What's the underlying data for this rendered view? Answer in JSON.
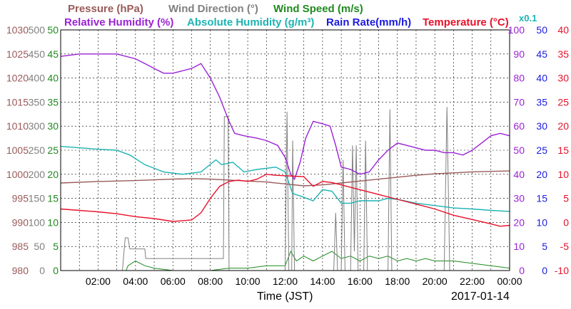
{
  "chart_data": {
    "type": "line",
    "xlabel": "Time (JST)",
    "date_label": "2017-01-14",
    "x_ticks": [
      "02:00",
      "04:00",
      "06:00",
      "08:00",
      "10:00",
      "12:00",
      "14:00",
      "16:00",
      "18:00",
      "20:00",
      "22:00",
      "00:00"
    ],
    "x_range_hours": [
      0,
      24
    ],
    "grid": true,
    "legend": [
      {
        "key": "pressure",
        "label": "Pressure (hPa)",
        "color": "#9a5a5a"
      },
      {
        "key": "wind_dir",
        "label": "Wind Direction (°)",
        "color": "#808080"
      },
      {
        "key": "wind_speed",
        "label": "Wind Speed (m/s)",
        "color": "#1f8a1f"
      },
      {
        "key": "rh",
        "label": "Relative Humidity (%)",
        "color": "#9b22d6"
      },
      {
        "key": "ah",
        "label": "Absolute Humidity (g/m³)",
        "color": "#1fb3b3"
      },
      {
        "key": "ah_scale",
        "label": "x0.1",
        "color": "#1fb3b3"
      },
      {
        "key": "rain",
        "label": "Rain Rate(mm/h)",
        "color": "#1b1be0"
      },
      {
        "key": "temp",
        "label": "Temperature (°C)",
        "color": "#e8102a"
      }
    ],
    "axes": {
      "pressure": {
        "side": "left",
        "color": "#9a5a5a",
        "ylim": [
          980,
          1030
        ],
        "ticks": [
          "1030",
          "1025",
          "1020",
          "1015",
          "1010",
          "1005",
          "1000",
          "995",
          "990",
          "985",
          "980"
        ]
      },
      "wind_dir": {
        "side": "left",
        "color": "#808080",
        "ylim": [
          0,
          500
        ],
        "ticks": [
          "500",
          "450",
          "400",
          "350",
          "300",
          "250",
          "200",
          "150",
          "100",
          "50",
          "0"
        ]
      },
      "wind_speed": {
        "side": "left",
        "color": "#1f8a1f",
        "ylim": [
          0,
          50
        ],
        "ticks": [
          "50",
          "45",
          "40",
          "35",
          "30",
          "25",
          "20",
          "15",
          "10",
          "5",
          "0"
        ]
      },
      "rh": {
        "side": "right",
        "color": "#9b22d6",
        "ylim": [
          0,
          100
        ],
        "ticks": [
          "100",
          "90",
          "80",
          "70",
          "60",
          "50",
          "40",
          "30",
          "20",
          "10",
          "0"
        ]
      },
      "rain": {
        "side": "right",
        "color": "#1b1be0",
        "ylim": [
          0,
          50
        ],
        "ticks": [
          "50",
          "45",
          "40",
          "35",
          "30",
          "25",
          "20",
          "15",
          "10",
          "5",
          "0"
        ]
      },
      "temp": {
        "side": "right",
        "color": "#e8102a",
        "ylim": [
          -10,
          40
        ],
        "ticks": [
          "40",
          "35",
          "30",
          "25",
          "20",
          "15",
          "10",
          "5",
          "0",
          "-5",
          "-10"
        ]
      }
    },
    "series": [
      {
        "key": "pressure",
        "name": "Pressure (hPa)",
        "axis": "pressure",
        "color": "#9a5a5a",
        "points": [
          [
            0,
            998.2
          ],
          [
            2,
            998.5
          ],
          [
            4,
            998.7
          ],
          [
            6,
            999.0
          ],
          [
            7,
            999.1
          ],
          [
            8,
            999.0
          ],
          [
            9,
            998.8
          ],
          [
            10,
            998.6
          ],
          [
            11,
            998.4
          ],
          [
            12,
            998.0
          ],
          [
            13,
            997.6
          ],
          [
            14,
            997.8
          ],
          [
            15,
            998.2
          ],
          [
            16,
            998.6
          ],
          [
            17,
            999.0
          ],
          [
            18,
            999.4
          ],
          [
            19,
            999.8
          ],
          [
            20,
            1000.1
          ],
          [
            21,
            1000.3
          ],
          [
            22,
            1000.5
          ],
          [
            23,
            1000.6
          ],
          [
            24,
            1000.7
          ]
        ]
      },
      {
        "key": "ah",
        "name": "Absolute Humidity (g/m³)",
        "axis": "wind_speed",
        "color": "#1fb3b3",
        "points": [
          [
            0,
            25.8
          ],
          [
            1,
            25.5
          ],
          [
            2,
            25.2
          ],
          [
            3,
            25.0
          ],
          [
            3.7,
            24.0
          ],
          [
            4.5,
            22.0
          ],
          [
            5.5,
            20.5
          ],
          [
            6.5,
            20.0
          ],
          [
            7.5,
            20.5
          ],
          [
            8.3,
            23.0
          ],
          [
            8.6,
            22.0
          ],
          [
            9.2,
            22.5
          ],
          [
            9.8,
            20.5
          ],
          [
            10.5,
            21.0
          ],
          [
            11.5,
            21.5
          ],
          [
            12,
            20.5
          ],
          [
            12.4,
            16.0
          ],
          [
            12.8,
            15.5
          ],
          [
            13.5,
            14.5
          ],
          [
            14,
            16.8
          ],
          [
            14.5,
            16.5
          ],
          [
            15,
            14.0
          ],
          [
            15.5,
            14.0
          ],
          [
            16,
            14.5
          ],
          [
            16.5,
            14.5
          ],
          [
            17,
            14.5
          ],
          [
            17.5,
            15.0
          ],
          [
            18,
            14.8
          ],
          [
            19,
            14.0
          ],
          [
            20,
            13.5
          ],
          [
            21,
            13.0
          ],
          [
            22,
            12.8
          ],
          [
            23,
            12.5
          ],
          [
            24,
            12.3
          ]
        ]
      },
      {
        "key": "rh",
        "name": "Relative Humidity (%)",
        "axis": "rh",
        "color": "#9b22d6",
        "points": [
          [
            0,
            89
          ],
          [
            1,
            90
          ],
          [
            2,
            90
          ],
          [
            3,
            90
          ],
          [
            4,
            88
          ],
          [
            4.5,
            86
          ],
          [
            5,
            84
          ],
          [
            5.5,
            82
          ],
          [
            6,
            82
          ],
          [
            6.5,
            83
          ],
          [
            7,
            84
          ],
          [
            7.5,
            86
          ],
          [
            8,
            80
          ],
          [
            8.5,
            72
          ],
          [
            9,
            62
          ],
          [
            9.3,
            57
          ],
          [
            9.8,
            56
          ],
          [
            10.5,
            55
          ],
          [
            11,
            54
          ],
          [
            11.6,
            52
          ],
          [
            12,
            47
          ],
          [
            12.3,
            40
          ],
          [
            12.5,
            38
          ],
          [
            12.8,
            45
          ],
          [
            13.1,
            55
          ],
          [
            13.5,
            62
          ],
          [
            14,
            61
          ],
          [
            14.4,
            60
          ],
          [
            14.7,
            52
          ],
          [
            15,
            43
          ],
          [
            15.5,
            42
          ],
          [
            16,
            40
          ],
          [
            16.5,
            41
          ],
          [
            17,
            46
          ],
          [
            17.5,
            50
          ],
          [
            18,
            53
          ],
          [
            18.5,
            52
          ],
          [
            19,
            51
          ],
          [
            19.5,
            50
          ],
          [
            20,
            50
          ],
          [
            20.5,
            49
          ],
          [
            21,
            49
          ],
          [
            21.5,
            48
          ],
          [
            22,
            50
          ],
          [
            22.5,
            53
          ],
          [
            23,
            56
          ],
          [
            23.5,
            57
          ],
          [
            24,
            56
          ]
        ]
      },
      {
        "key": "temp",
        "name": "Temperature (°C)",
        "axis": "temp",
        "color": "#e8102a",
        "points": [
          [
            0,
            2.8
          ],
          [
            1,
            2.5
          ],
          [
            2,
            2.2
          ],
          [
            3,
            1.8
          ],
          [
            4,
            1.2
          ],
          [
            5,
            0.8
          ],
          [
            6,
            0.2
          ],
          [
            7,
            0.5
          ],
          [
            7.5,
            2.0
          ],
          [
            8,
            5.0
          ],
          [
            8.5,
            7.5
          ],
          [
            9,
            8.5
          ],
          [
            9.5,
            8.8
          ],
          [
            10,
            8.5
          ],
          [
            10.5,
            9.0
          ],
          [
            11,
            10.0
          ],
          [
            11.5,
            9.8
          ],
          [
            12,
            9.7
          ],
          [
            12.5,
            9.6
          ],
          [
            13,
            9.5
          ],
          [
            13.5,
            7.5
          ],
          [
            14,
            8.5
          ],
          [
            14.5,
            8.3
          ],
          [
            15,
            7.8
          ],
          [
            16,
            6.8
          ],
          [
            17,
            5.8
          ],
          [
            18,
            4.8
          ],
          [
            19,
            3.8
          ],
          [
            20,
            2.8
          ],
          [
            21,
            1.5
          ],
          [
            22,
            0.6
          ],
          [
            23,
            -0.3
          ],
          [
            23.5,
            -0.8
          ],
          [
            24,
            -0.6
          ]
        ]
      },
      {
        "key": "wind_dir",
        "name": "Wind Direction (°)",
        "axis": "wind_dir",
        "color": "#808080",
        "points": [
          [
            0,
            0
          ],
          [
            3.3,
            0
          ],
          [
            3.45,
            68
          ],
          [
            3.6,
            68
          ],
          [
            3.7,
            45
          ],
          [
            4.5,
            45
          ],
          [
            4.55,
            25
          ],
          [
            8.7,
            25
          ],
          [
            8.75,
            320
          ],
          [
            8.95,
            320
          ],
          [
            9.0,
            0
          ],
          [
            12,
            0
          ],
          [
            12.1,
            330
          ],
          [
            12.2,
            0
          ],
          [
            12.35,
            0
          ],
          [
            12.4,
            270
          ],
          [
            12.5,
            0
          ],
          [
            14.6,
            0
          ],
          [
            14.7,
            120
          ],
          [
            14.8,
            0
          ],
          [
            15.0,
            0
          ],
          [
            15.1,
            230
          ],
          [
            15.2,
            0
          ],
          [
            15.5,
            0
          ],
          [
            15.6,
            260
          ],
          [
            15.7,
            40
          ],
          [
            15.8,
            260
          ],
          [
            15.9,
            0
          ],
          [
            16.2,
            0
          ],
          [
            16.3,
            270
          ],
          [
            16.4,
            0
          ],
          [
            17.5,
            0
          ],
          [
            17.6,
            335
          ],
          [
            17.7,
            0
          ],
          [
            20.5,
            0
          ],
          [
            20.65,
            340
          ],
          [
            20.8,
            0
          ],
          [
            24,
            0
          ]
        ]
      },
      {
        "key": "wind_speed",
        "name": "Wind Speed (m/s)",
        "axis": "wind_speed",
        "color": "#1f8a1f",
        "points": [
          [
            0,
            0
          ],
          [
            3.5,
            0
          ],
          [
            3.6,
            1
          ],
          [
            4.0,
            2
          ],
          [
            4.5,
            1
          ],
          [
            5,
            0.5
          ],
          [
            6,
            0
          ],
          [
            8,
            0
          ],
          [
            9,
            0.5
          ],
          [
            10,
            0.5
          ],
          [
            11,
            1
          ],
          [
            12,
            1
          ],
          [
            12.3,
            4
          ],
          [
            12.6,
            2
          ],
          [
            13,
            3
          ],
          [
            13.5,
            2
          ],
          [
            14,
            3
          ],
          [
            14.5,
            4
          ],
          [
            15,
            2.5
          ],
          [
            15.5,
            3
          ],
          [
            16,
            2
          ],
          [
            16.5,
            3
          ],
          [
            17,
            2.5
          ],
          [
            17.5,
            3
          ],
          [
            18,
            2
          ],
          [
            18.5,
            2.5
          ],
          [
            19,
            2
          ],
          [
            19.5,
            2.5
          ],
          [
            20,
            2
          ],
          [
            21,
            2
          ],
          [
            22,
            1.5
          ],
          [
            23,
            1
          ],
          [
            24,
            0.5
          ]
        ]
      }
    ]
  }
}
